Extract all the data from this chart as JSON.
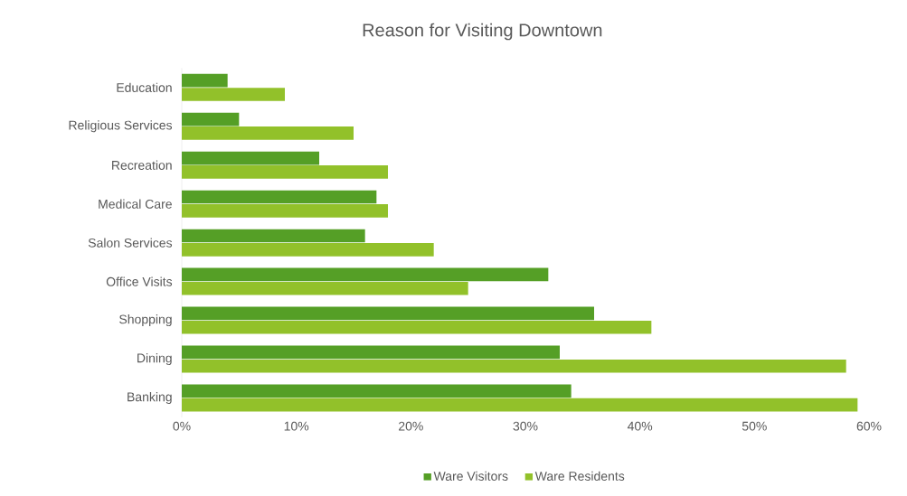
{
  "chart_data": {
    "type": "bar",
    "orientation": "horizontal",
    "title": "Reason for Visiting Downtown",
    "categories": [
      "Education",
      "Religious Services",
      "Recreation",
      "Medical Care",
      "Salon Services",
      "Office Visits",
      "Shopping",
      "Dining",
      "Banking"
    ],
    "series": [
      {
        "name": "Ware Visitors",
        "color": "#559f26",
        "values": [
          4,
          5,
          12,
          17,
          16,
          32,
          36,
          33,
          34
        ]
      },
      {
        "name": "Ware Residents",
        "color": "#92c12a",
        "values": [
          9,
          15,
          18,
          18,
          22,
          25,
          41,
          58,
          59
        ]
      }
    ],
    "xlim": [
      0,
      60
    ],
    "xticks": [
      {
        "value": 0,
        "label": "0%"
      },
      {
        "value": 10,
        "label": "10%"
      },
      {
        "value": 20,
        "label": "20%"
      },
      {
        "value": 30,
        "label": "30%"
      },
      {
        "value": 40,
        "label": "40%"
      },
      {
        "value": 50,
        "label": "50%"
      },
      {
        "value": 60,
        "label": "60%"
      }
    ],
    "grid": false,
    "legend": "bottom"
  }
}
